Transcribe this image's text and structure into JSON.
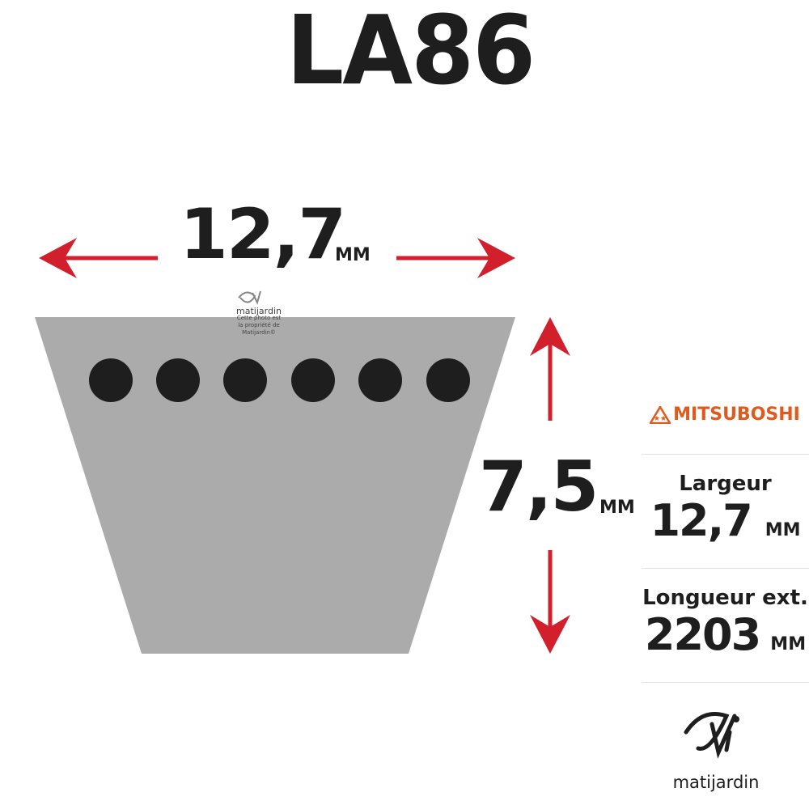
{
  "title": "LA86",
  "width_dim": {
    "value": "12,7",
    "unit": "MM"
  },
  "height_dim": {
    "value": "7,5",
    "unit": "MM"
  },
  "watermark": {
    "brand": "matijardin",
    "note": "Cette photo est la propriété de Matijardin©"
  },
  "brand": {
    "name": "MITSUBOSHI",
    "color": "#e05a1e"
  },
  "specs": [
    {
      "label": "Largeur",
      "value": "12,7",
      "unit": "MM"
    },
    {
      "label": "Longueur ext.",
      "value": "2203",
      "unit": "MM"
    }
  ],
  "logo": {
    "name": "matijardin"
  },
  "colors": {
    "arrow": "#d21f2c",
    "belt": "#ababab",
    "cords": "#1e1e1e"
  }
}
